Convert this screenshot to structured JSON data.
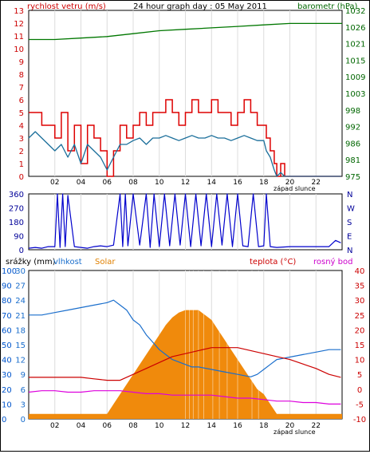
{
  "chart_data": [
    {
      "type": "line",
      "title": "24 hour graph day : 05 May 2011",
      "ylabel_left": "rychlost vetru (m/s)",
      "ylabel_right": "barometr (hPa)",
      "x_ticks": [
        "02",
        "04",
        "06",
        "08",
        "10",
        "12",
        "14",
        "16",
        "18",
        "20",
        "22"
      ],
      "x_annotation": "západ slunce",
      "ylim_left": [
        0,
        13
      ],
      "left_ticks": [
        "0",
        "1",
        "2",
        "3",
        "4",
        "5",
        "6",
        "7",
        "8",
        "9",
        "10",
        "11",
        "12",
        "13"
      ],
      "right_ticks": [
        "975",
        "981",
        "986",
        "992",
        "998",
        "1003",
        "1009",
        "1015",
        "1021",
        "1026",
        "1032"
      ],
      "colors": {
        "gust": "#dd0000",
        "wind": "#1a6e9a",
        "pressure": "#007700",
        "axis_left": "#cc0000",
        "axis_right": "#006600"
      },
      "series": [
        {
          "key": "gust",
          "x": [
            0,
            0.5,
            1,
            1.5,
            2,
            2.5,
            3,
            3.5,
            4,
            4.5,
            5,
            5.5,
            6,
            6.5,
            7,
            7.5,
            8,
            8.5,
            9,
            9.5,
            10,
            10.5,
            11,
            11.5,
            12,
            12.5,
            13,
            13.5,
            14,
            14.5,
            15,
            15.5,
            16,
            16.5,
            17,
            17.5,
            18,
            18.2,
            18.5,
            18.8,
            19,
            19.3,
            19.6,
            20,
            21,
            22,
            23,
            23.9
          ],
          "y": [
            5,
            5,
            4,
            4,
            3,
            5,
            2,
            4,
            1,
            4,
            3,
            2,
            0,
            2,
            4,
            3,
            4,
            5,
            4,
            5,
            5,
            6,
            5,
            4,
            5,
            6,
            5,
            5,
            6,
            5,
            5,
            4,
            5,
            6,
            5,
            4,
            4,
            3,
            2,
            1,
            0,
            1,
            0,
            0,
            0,
            0,
            0,
            0
          ]
        },
        {
          "key": "wind",
          "x": [
            0,
            0.5,
            1,
            1.5,
            2,
            2.5,
            3,
            3.5,
            4,
            4.5,
            5,
            5.5,
            6,
            6.5,
            7,
            7.5,
            8,
            8.5,
            9,
            9.5,
            10,
            10.5,
            11,
            11.5,
            12,
            12.5,
            13,
            13.5,
            14,
            14.5,
            15,
            15.5,
            16,
            16.5,
            17,
            17.5,
            18,
            18.2,
            18.5,
            18.8,
            19,
            19.3,
            19.6,
            20,
            21,
            22,
            23,
            23.9
          ],
          "y": [
            3,
            3.5,
            3,
            2.5,
            2,
            2.5,
            1.5,
            2.5,
            1,
            2.5,
            2,
            1.5,
            0.5,
            1.5,
            2.5,
            2.5,
            2.8,
            3,
            2.5,
            3,
            3,
            3.2,
            3,
            2.8,
            3,
            3.2,
            3,
            3,
            3.2,
            3,
            3,
            2.8,
            3,
            3.2,
            3,
            2.8,
            2.8,
            2,
            1.5,
            0.5,
            0,
            0.3,
            0,
            0,
            0,
            0,
            0,
            0
          ]
        },
        {
          "key": "pressure",
          "x": [
            0,
            2,
            4,
            6,
            8,
            10,
            12,
            14,
            16,
            18,
            20,
            22,
            24
          ],
          "y": [
            1022,
            1022,
            1022.5,
            1023,
            1024,
            1025,
            1025.5,
            1026,
            1026.5,
            1027,
            1027.5,
            1027.5,
            1027.5
          ]
        }
      ]
    },
    {
      "type": "line",
      "x_ticks": [
        "02",
        "04",
        "06",
        "08",
        "10",
        "12",
        "14",
        "16",
        "18",
        "20",
        "22"
      ],
      "left_ticks": [
        "0",
        "90",
        "180",
        "270",
        "360"
      ],
      "right_ticks": [
        "N",
        "E",
        "S",
        "W",
        "N"
      ],
      "ylim": [
        0,
        360
      ],
      "colors": {
        "direction": "#0000cc"
      },
      "series": [
        {
          "key": "direction",
          "x": [
            0,
            0.5,
            1,
            1.5,
            2,
            2.2,
            2.4,
            2.6,
            2.8,
            3,
            3.5,
            4,
            4.5,
            5,
            5.5,
            6,
            6.5,
            7,
            7.2,
            7.4,
            7.6,
            8,
            8.5,
            9,
            9.3,
            9.6,
            10,
            10.4,
            10.8,
            11.2,
            11.6,
            12,
            12.4,
            12.8,
            13.2,
            13.6,
            14,
            14.4,
            14.8,
            15.2,
            15.6,
            16,
            16.4,
            16.8,
            17.2,
            17.6,
            18,
            18.2,
            18.5,
            19,
            20,
            21,
            22,
            23,
            23.5,
            23.9
          ],
          "y": [
            10,
            15,
            10,
            20,
            20,
            360,
            15,
            360,
            20,
            350,
            20,
            15,
            10,
            20,
            25,
            20,
            30,
            360,
            20,
            360,
            25,
            360,
            30,
            360,
            15,
            360,
            20,
            360,
            25,
            360,
            30,
            360,
            20,
            360,
            25,
            360,
            20,
            360,
            30,
            360,
            20,
            360,
            25,
            20,
            360,
            20,
            25,
            360,
            20,
            15,
            20,
            20,
            20,
            20,
            60,
            45
          ]
        }
      ]
    },
    {
      "type": "area",
      "x_ticks": [
        "02",
        "04",
        "06",
        "08",
        "10",
        "12",
        "14",
        "16",
        "18",
        "20",
        "22"
      ],
      "x_annotation": "západ slunce",
      "legend": [
        "srážky (mm)",
        "vlhkost",
        "Solar",
        "teplota (°C)",
        "rosný bod"
      ],
      "left_ticks_rain": [
        "0",
        "10",
        "20",
        "30",
        "40",
        "50",
        "60",
        "70",
        "80",
        "90",
        "100"
      ],
      "left_ticks_humidity": [
        "0",
        "3",
        "6",
        "9",
        "12",
        "15",
        "18",
        "21",
        "24",
        "27",
        "30"
      ],
      "right_ticks": [
        "-10",
        "-5",
        "0",
        "5",
        "10",
        "15",
        "20",
        "25",
        "30",
        "35",
        "40"
      ],
      "ylim_humidity": [
        0,
        30
      ],
      "ylim_temp": [
        -10,
        40
      ],
      "colors": {
        "humidity": "#1a6ecc",
        "solar": "#f08a0c",
        "temperature": "#cc0000",
        "dewpoint": "#dd00dd",
        "rain_axis": "#0055cc"
      },
      "series": [
        {
          "key": "solar",
          "x": [
            0,
            6,
            6.5,
            7,
            7.5,
            8,
            8.5,
            9,
            9.5,
            10,
            10.5,
            11,
            11.5,
            12,
            12.5,
            13,
            13.5,
            14,
            14.5,
            15,
            15.5,
            16,
            16.5,
            17,
            17.5,
            18,
            18.5,
            19,
            19.5,
            20,
            24
          ],
          "y": [
            1,
            1,
            3,
            5,
            7,
            9,
            11,
            13,
            15,
            17,
            19,
            20.5,
            21.5,
            22,
            22,
            22,
            21,
            20,
            18,
            16,
            14,
            12,
            10,
            8,
            6,
            5,
            3,
            1,
            1,
            1,
            1
          ]
        },
        {
          "key": "humidity",
          "x": [
            0,
            1,
            2,
            3,
            4,
            5,
            6,
            6.5,
            7,
            7.5,
            8,
            8.5,
            9,
            9.5,
            10,
            10.5,
            11,
            11.5,
            12,
            12.5,
            13,
            14,
            15,
            16,
            17,
            17.5,
            18,
            18.5,
            19,
            20,
            21,
            22,
            23,
            23.9
          ],
          "y": [
            21,
            21,
            21.5,
            22,
            22.5,
            23,
            23.5,
            24,
            23,
            22,
            20,
            19,
            17,
            15.5,
            14,
            13,
            12,
            11.5,
            11,
            10.5,
            10.5,
            10,
            9.5,
            9,
            8.5,
            9,
            10,
            11,
            12,
            12.5,
            13,
            13.5,
            14,
            14
          ]
        },
        {
          "key": "temperature",
          "x": [
            0,
            1,
            2,
            3,
            4,
            5,
            6,
            7,
            8,
            9,
            10,
            11,
            12,
            13,
            14,
            15,
            16,
            17,
            18,
            19,
            20,
            21,
            22,
            23,
            23.9
          ],
          "y": [
            4,
            4,
            4,
            4,
            4,
            3.5,
            3,
            3,
            5,
            7,
            9,
            11,
            12,
            13,
            14,
            14,
            14,
            13,
            12,
            11,
            10,
            8.5,
            7,
            5,
            4
          ]
        },
        {
          "key": "dewpoint",
          "x": [
            0,
            1,
            2,
            3,
            4,
            5,
            6,
            7,
            8,
            9,
            10,
            11,
            12,
            13,
            14,
            15,
            16,
            17,
            18,
            19,
            20,
            21,
            22,
            23,
            23.9
          ],
          "y": [
            -1,
            -0.5,
            -0.5,
            -1,
            -1,
            -0.5,
            -0.5,
            -0.5,
            -1,
            -1.5,
            -1.5,
            -2,
            -2,
            -2,
            -2,
            -2.5,
            -3,
            -3,
            -3.5,
            -4,
            -4,
            -4.5,
            -4.5,
            -5,
            -5
          ]
        }
      ]
    }
  ]
}
